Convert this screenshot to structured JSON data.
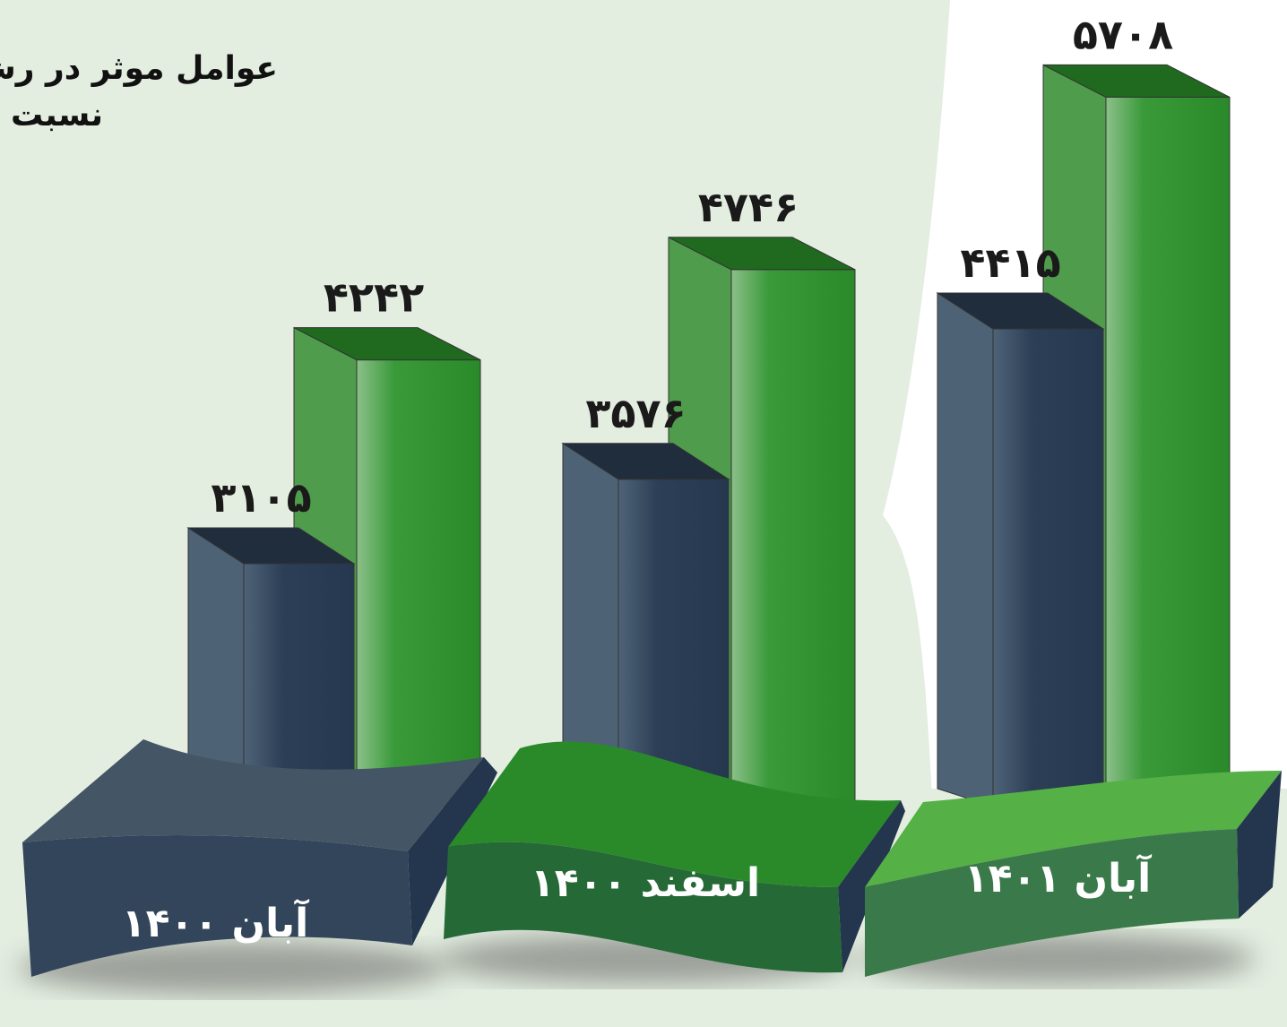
{
  "chart_data": {
    "type": "bar3d",
    "title": "عوامل موثر در رش",
    "subtitle": "نسبت ب",
    "categories": [
      "آبان ۱۴۰۰",
      "اسفند ۱۴۰۰",
      "آبان ۱۴۰۱"
    ],
    "series": [
      {
        "color": "#2c3e55",
        "values": [
          3105,
          3576,
          4415
        ],
        "value_labels": [
          "۳۱۰۵",
          "۳۵۷۶",
          "۴۴۱۵"
        ]
      },
      {
        "color": "#2a8a2a",
        "values": [
          4242,
          4746,
          5708
        ],
        "value_labels": [
          "۴۲۴۲",
          "۴۷۴۶",
          "۵۷۰۸"
        ]
      }
    ]
  }
}
